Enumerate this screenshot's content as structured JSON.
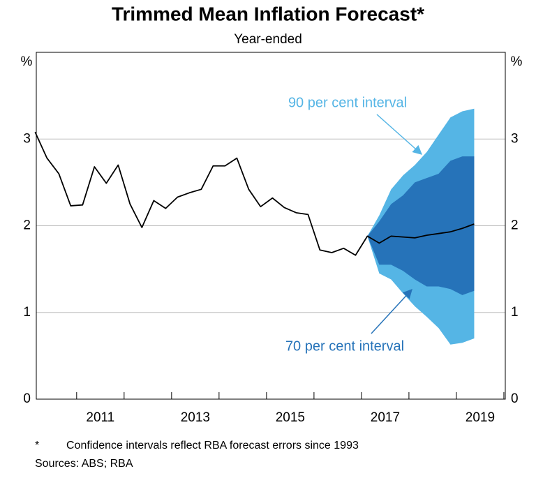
{
  "chart_data": {
    "type": "line",
    "title": "Trimmed Mean Inflation Forecast*",
    "subtitle": "Year-ended",
    "y_unit_left": "%",
    "y_unit_right": "%",
    "xlim": [
      2010.15,
      2020.03
    ],
    "xticks": [
      2011,
      2012,
      2013,
      2014,
      2015,
      2016,
      2017,
      2018,
      2019,
      2020
    ],
    "xtick_labels": [
      {
        "value": 2011.5,
        "label": "2011"
      },
      {
        "value": 2013.5,
        "label": "2013"
      },
      {
        "value": 2015.5,
        "label": "2015"
      },
      {
        "value": 2017.5,
        "label": "2017"
      },
      {
        "value": 2019.5,
        "label": "2019"
      }
    ],
    "ylim": [
      0,
      4
    ],
    "yticks": [
      0,
      1,
      2,
      3
    ],
    "grid": true,
    "line": {
      "color": "#000000",
      "x": [
        2010.125,
        2010.375,
        2010.625,
        2010.875,
        2011.125,
        2011.375,
        2011.625,
        2011.875,
        2012.125,
        2012.375,
        2012.625,
        2012.875,
        2013.125,
        2013.375,
        2013.625,
        2013.875,
        2014.125,
        2014.375,
        2014.625,
        2014.875,
        2015.125,
        2015.375,
        2015.625,
        2015.875,
        2016.125,
        2016.375,
        2016.625,
        2016.875,
        2017.125,
        2017.375,
        2017.625,
        2017.875,
        2018.125,
        2018.375,
        2018.625,
        2018.875,
        2019.125,
        2019.375
      ],
      "values": [
        3.08,
        2.78,
        2.6,
        2.23,
        2.24,
        2.68,
        2.49,
        2.7,
        2.25,
        1.98,
        2.29,
        2.2,
        2.33,
        2.38,
        2.42,
        2.69,
        2.69,
        2.78,
        2.42,
        2.22,
        2.32,
        2.21,
        2.15,
        2.13,
        1.72,
        1.69,
        1.74,
        1.66,
        1.88,
        1.8,
        1.88,
        1.87,
        1.86,
        1.89,
        1.91,
        1.93,
        1.97,
        2.02
      ]
    },
    "bands": [
      {
        "name": "90 per cent interval",
        "color": "#55b5e5",
        "x": [
          2017.125,
          2017.375,
          2017.625,
          2017.875,
          2018.125,
          2018.375,
          2018.625,
          2018.875,
          2019.125,
          2019.375
        ],
        "upper": [
          1.88,
          2.12,
          2.42,
          2.58,
          2.7,
          2.85,
          3.05,
          3.25,
          3.32,
          3.35
        ],
        "lower": [
          1.88,
          1.45,
          1.38,
          1.22,
          1.07,
          0.95,
          0.82,
          0.63,
          0.65,
          0.7
        ]
      },
      {
        "name": "70 per cent interval",
        "color": "#2673b9",
        "x": [
          2017.125,
          2017.375,
          2017.625,
          2017.875,
          2018.125,
          2018.375,
          2018.625,
          2018.875,
          2019.125,
          2019.375
        ],
        "upper": [
          1.88,
          2.05,
          2.25,
          2.35,
          2.5,
          2.55,
          2.6,
          2.75,
          2.8,
          2.8
        ],
        "lower": [
          1.88,
          1.55,
          1.55,
          1.48,
          1.38,
          1.3,
          1.3,
          1.27,
          1.2,
          1.25
        ]
      }
    ],
    "footnote_marker": "*",
    "footnote": "Confidence intervals reflect RBA forecast errors since 1993",
    "sources": "Sources: ABS; RBA"
  }
}
